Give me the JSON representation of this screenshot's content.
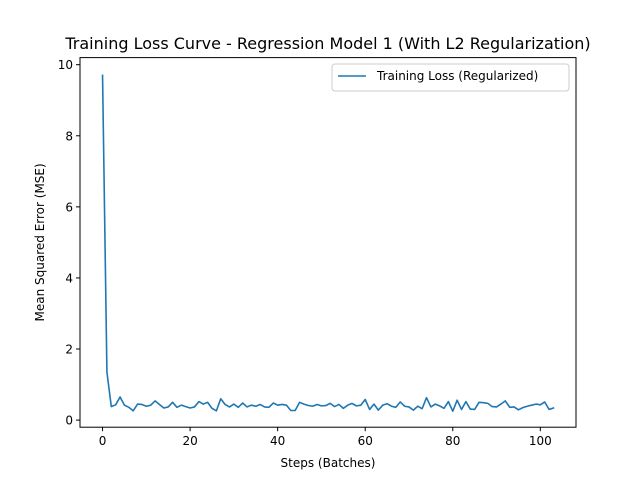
{
  "chart_data": {
    "type": "line",
    "title": "Training Loss Curve - Regression Model 1 (With L2 Regularization)",
    "xlabel": "Steps (Batches)",
    "ylabel": "Mean Squared Error (MSE)",
    "xlim": [
      -5.15,
      108.15
    ],
    "ylim": [
      -0.2,
      10.2
    ],
    "x_ticks": [
      0,
      20,
      40,
      60,
      80,
      100
    ],
    "y_ticks": [
      0,
      2,
      4,
      6,
      8,
      10
    ],
    "grid": false,
    "legend_position": "top-right",
    "series": [
      {
        "name": "Training Loss (Regularized)",
        "color": "#1f77b4",
        "x": [
          0,
          1,
          2,
          3,
          4,
          5,
          6,
          7,
          8,
          9,
          10,
          11,
          12,
          13,
          14,
          15,
          16,
          17,
          18,
          19,
          20,
          21,
          22,
          23,
          24,
          25,
          26,
          27,
          28,
          29,
          30,
          31,
          32,
          33,
          34,
          35,
          36,
          37,
          38,
          39,
          40,
          41,
          42,
          43,
          44,
          45,
          46,
          47,
          48,
          49,
          50,
          51,
          52,
          53,
          54,
          55,
          56,
          57,
          58,
          59,
          60,
          61,
          62,
          63,
          64,
          65,
          66,
          67,
          68,
          69,
          70,
          71,
          72,
          73,
          74,
          75,
          76,
          77,
          78,
          79,
          80,
          81,
          82,
          83,
          84,
          85,
          86,
          87,
          88,
          89,
          90,
          91,
          92,
          93,
          94,
          95,
          96,
          97,
          98,
          99,
          100,
          101,
          102,
          103
        ],
        "values": [
          9.7,
          1.35,
          0.38,
          0.43,
          0.65,
          0.42,
          0.36,
          0.26,
          0.45,
          0.44,
          0.39,
          0.42,
          0.54,
          0.44,
          0.34,
          0.37,
          0.5,
          0.36,
          0.42,
          0.38,
          0.34,
          0.37,
          0.52,
          0.45,
          0.5,
          0.33,
          0.26,
          0.6,
          0.44,
          0.37,
          0.45,
          0.36,
          0.48,
          0.37,
          0.42,
          0.39,
          0.44,
          0.37,
          0.36,
          0.48,
          0.42,
          0.44,
          0.42,
          0.27,
          0.27,
          0.5,
          0.45,
          0.41,
          0.39,
          0.44,
          0.4,
          0.41,
          0.47,
          0.38,
          0.44,
          0.33,
          0.42,
          0.47,
          0.4,
          0.42,
          0.58,
          0.3,
          0.45,
          0.28,
          0.42,
          0.46,
          0.39,
          0.36,
          0.51,
          0.39,
          0.37,
          0.28,
          0.39,
          0.32,
          0.63,
          0.37,
          0.45,
          0.4,
          0.33,
          0.52,
          0.25,
          0.56,
          0.3,
          0.52,
          0.31,
          0.3,
          0.5,
          0.49,
          0.47,
          0.38,
          0.37,
          0.45,
          0.54,
          0.36,
          0.37,
          0.29,
          0.35,
          0.39,
          0.42,
          0.45,
          0.43,
          0.51,
          0.3,
          0.34
        ]
      }
    ]
  }
}
